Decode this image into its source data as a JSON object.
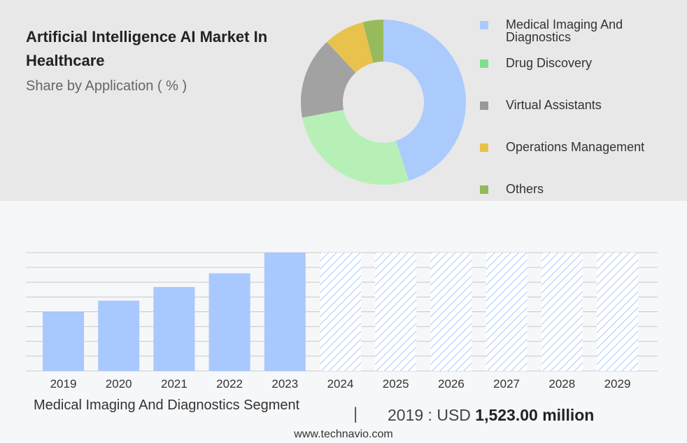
{
  "header": {
    "title": "Artificial Intelligence AI Market In Healthcare",
    "subtitle": "Share by Application ( % )"
  },
  "legend": [
    {
      "label": "Medical Imaging And Diagnostics",
      "color": "#a9c9ff"
    },
    {
      "label": "Drug Discovery",
      "color": "#7ee08f"
    },
    {
      "label": "Virtual Assistants",
      "color": "#999999"
    },
    {
      "label": "Operations Management",
      "color": "#e6c24a"
    },
    {
      "label": "Others",
      "color": "#93b95a"
    }
  ],
  "chart_data": [
    {
      "type": "pie",
      "categories": [
        "Medical Imaging And Diagnostics",
        "Drug Discovery",
        "Virtual Assistants",
        "Operations Management",
        "Others"
      ],
      "values": [
        45,
        27,
        16,
        8,
        4
      ],
      "colors": [
        "#abcbfd",
        "#b6f0b6",
        "#a2a2a2",
        "#e8c24c",
        "#97bb5c"
      ],
      "style": "donut"
    },
    {
      "type": "bar",
      "categories": [
        "2019",
        "2020",
        "2021",
        "2022",
        "2023",
        "2024",
        "2025",
        "2026",
        "2027",
        "2028",
        "2029"
      ],
      "values": [
        1523,
        1800,
        2150,
        2500,
        3030,
        3030,
        3030,
        3030,
        3030,
        3030,
        3030
      ],
      "forecast_from": "2024",
      "ylim": [
        0,
        3030
      ],
      "grid": true,
      "color": "#a9c8fd"
    }
  ],
  "footer": {
    "segment": "Medical Imaging And Diagnostics Segment",
    "separator": "|",
    "value_prefix": "2019 : USD",
    "value_bold": "1,523.00 million",
    "source": "www.technavio.com"
  }
}
